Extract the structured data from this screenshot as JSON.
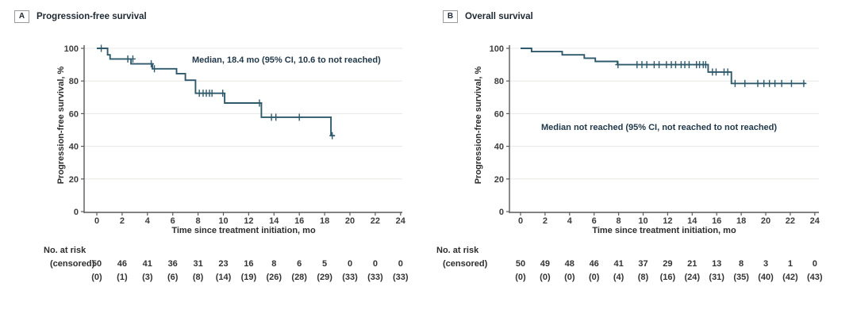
{
  "colors": {
    "curve": "#2e5a6c",
    "axis": "#58595b",
    "grid": "#eaeae8",
    "tick_text": "#3d3d3d",
    "annotation_text": "#21394a"
  },
  "chart_data": [
    {
      "type": "line",
      "subtype": "kaplan-meier-step",
      "panel_letter": "A",
      "title": "Progression-free survival",
      "xlabel": "Time since treatment initiation, mo",
      "ylabel": "Progression-free survival, %",
      "annotation": "Median, 18.4 mo (95% CI, 10.6 to not reached)",
      "xlim": [
        0,
        24
      ],
      "ylim": [
        0,
        100
      ],
      "grid": true,
      "x_ticks": [
        0,
        2,
        4,
        6,
        8,
        10,
        12,
        14,
        16,
        18,
        20,
        22,
        24
      ],
      "y_ticks": [
        0,
        20,
        40,
        60,
        80,
        100
      ],
      "line_color": "#2e5a6c",
      "steps": [
        [
          0,
          100
        ],
        [
          0.85,
          100
        ],
        [
          0.85,
          96
        ],
        [
          1.05,
          96
        ],
        [
          1.05,
          93.5
        ],
        [
          2.7,
          93.5
        ],
        [
          2.7,
          90.5
        ],
        [
          4.4,
          90.5
        ],
        [
          4.4,
          87.5
        ],
        [
          6.3,
          87.5
        ],
        [
          6.3,
          84.5
        ],
        [
          7.0,
          84.5
        ],
        [
          7.0,
          80.5
        ],
        [
          7.8,
          80.5
        ],
        [
          7.8,
          72.5
        ],
        [
          10.1,
          72.5
        ],
        [
          10.1,
          66.5
        ],
        [
          13.0,
          66.5
        ],
        [
          13.0,
          57.8
        ],
        [
          18.5,
          57.8
        ],
        [
          18.5,
          46.5
        ],
        [
          18.8,
          46.5
        ]
      ],
      "censor_marks": [
        [
          0.35,
          100
        ],
        [
          2.45,
          93.5
        ],
        [
          2.85,
          93.5
        ],
        [
          4.3,
          90.5
        ],
        [
          4.55,
          87.5
        ],
        [
          8.1,
          72.5
        ],
        [
          8.4,
          72.5
        ],
        [
          8.65,
          72.5
        ],
        [
          8.9,
          72.5
        ],
        [
          9.1,
          72.5
        ],
        [
          9.95,
          72.5
        ],
        [
          12.85,
          66.5
        ],
        [
          13.8,
          57.8
        ],
        [
          14.15,
          57.8
        ],
        [
          16.0,
          57.8
        ],
        [
          18.6,
          46.5
        ]
      ],
      "at_risk": {
        "label1": "No. at risk",
        "label2": "(censored)",
        "times": [
          0,
          2,
          4,
          6,
          8,
          10,
          12,
          14,
          16,
          18,
          20,
          22,
          24
        ],
        "n": [
          50,
          46,
          41,
          36,
          31,
          23,
          16,
          8,
          6,
          5,
          0,
          0,
          0
        ],
        "censored": [
          0,
          1,
          3,
          6,
          8,
          14,
          19,
          26,
          28,
          29,
          33,
          33,
          33
        ]
      }
    },
    {
      "type": "line",
      "subtype": "kaplan-meier-step",
      "panel_letter": "B",
      "title": "Overall survival",
      "xlabel": "Time since treatment initiation, mo",
      "ylabel": "Progression-free survival, %",
      "annotation": "Median not reached (95% CI, not reached to not reached)",
      "xlim": [
        0,
        24
      ],
      "ylim": [
        0,
        100
      ],
      "grid": true,
      "x_ticks": [
        0,
        2,
        4,
        6,
        8,
        10,
        12,
        14,
        16,
        18,
        20,
        22,
        24
      ],
      "y_ticks": [
        0,
        20,
        40,
        60,
        80,
        100
      ],
      "line_color": "#2e5a6c",
      "steps": [
        [
          0,
          100
        ],
        [
          0.9,
          100
        ],
        [
          0.9,
          98
        ],
        [
          3.4,
          98
        ],
        [
          3.4,
          96
        ],
        [
          5.2,
          96
        ],
        [
          5.2,
          94
        ],
        [
          6.1,
          94
        ],
        [
          6.1,
          92
        ],
        [
          7.9,
          92
        ],
        [
          7.9,
          90
        ],
        [
          15.3,
          90
        ],
        [
          15.3,
          85.5
        ],
        [
          17.2,
          85.5
        ],
        [
          17.2,
          78.5
        ],
        [
          23.25,
          78.5
        ]
      ],
      "censor_marks": [
        [
          7.95,
          90
        ],
        [
          9.5,
          90
        ],
        [
          9.9,
          90
        ],
        [
          10.3,
          90
        ],
        [
          10.9,
          90
        ],
        [
          11.3,
          90
        ],
        [
          11.9,
          90
        ],
        [
          12.3,
          90
        ],
        [
          12.65,
          90
        ],
        [
          13.1,
          90
        ],
        [
          13.4,
          90
        ],
        [
          13.75,
          90
        ],
        [
          14.35,
          90
        ],
        [
          14.6,
          90
        ],
        [
          14.9,
          90
        ],
        [
          15.1,
          90
        ],
        [
          15.65,
          85.5
        ],
        [
          15.95,
          85.5
        ],
        [
          16.6,
          85.5
        ],
        [
          16.9,
          85.5
        ],
        [
          17.5,
          78.5
        ],
        [
          18.3,
          78.5
        ],
        [
          19.35,
          78.5
        ],
        [
          19.85,
          78.5
        ],
        [
          20.3,
          78.5
        ],
        [
          20.75,
          78.5
        ],
        [
          21.3,
          78.5
        ],
        [
          22.1,
          78.5
        ],
        [
          23.1,
          78.5
        ]
      ],
      "at_risk": {
        "label1": "No. at risk",
        "label2": "(censored)",
        "times": [
          0,
          2,
          4,
          6,
          8,
          10,
          12,
          14,
          16,
          18,
          20,
          22,
          24
        ],
        "n": [
          50,
          49,
          48,
          46,
          41,
          37,
          29,
          21,
          13,
          8,
          3,
          1,
          0
        ],
        "censored": [
          0,
          0,
          0,
          0,
          4,
          8,
          16,
          24,
          31,
          35,
          40,
          42,
          43
        ]
      }
    }
  ]
}
